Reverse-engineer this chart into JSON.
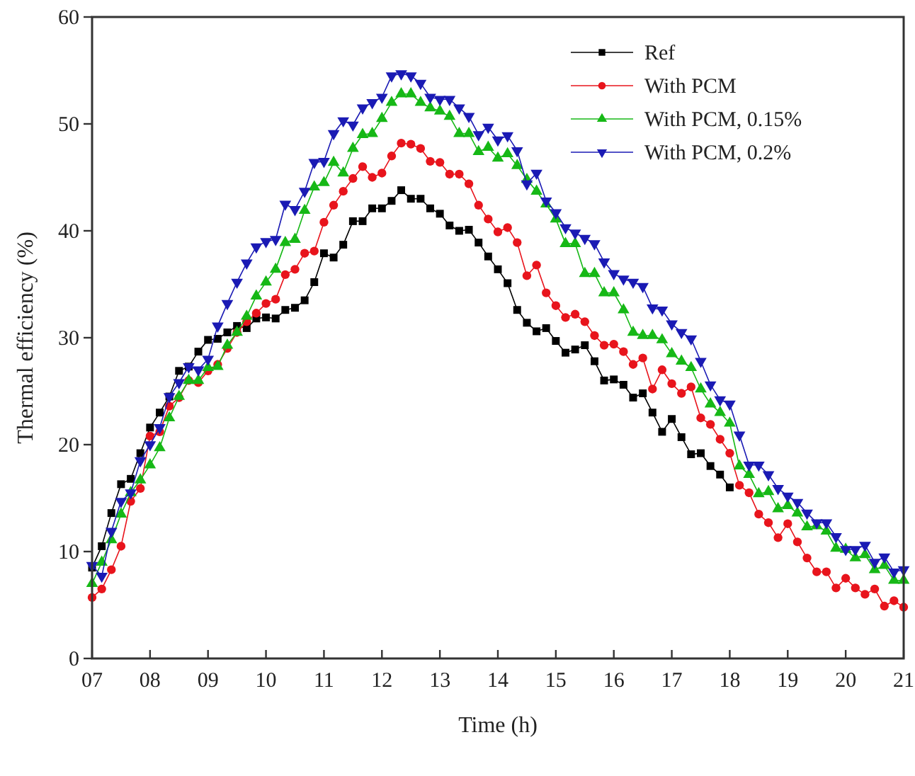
{
  "chart_data": {
    "type": "line",
    "xlabel": "Time (h)",
    "ylabel": "Thermal efficiency (%)",
    "x": [
      7,
      7.167,
      7.333,
      7.5,
      7.667,
      7.833,
      8,
      8.167,
      8.333,
      8.5,
      8.667,
      8.833,
      9,
      9.167,
      9.333,
      9.5,
      9.667,
      9.833,
      10,
      10.167,
      10.333,
      10.5,
      10.667,
      10.833,
      11,
      11.167,
      11.333,
      11.5,
      11.667,
      11.833,
      12,
      12.167,
      12.333,
      12.5,
      12.667,
      12.833,
      13,
      13.167,
      13.333,
      13.5,
      13.667,
      13.833,
      14,
      14.167,
      14.333,
      14.5,
      14.667,
      14.833,
      15,
      15.167,
      15.333,
      15.5,
      15.667,
      15.833,
      16,
      16.167,
      16.333,
      16.5,
      16.667,
      16.833,
      17,
      17.167,
      17.333,
      17.5,
      17.667,
      17.833,
      18,
      18.167,
      18.333,
      18.5,
      18.667,
      18.833,
      19,
      19.167,
      19.333,
      19.5,
      19.667,
      19.833,
      20,
      20.167,
      20.333,
      20.5,
      20.667,
      20.833,
      21
    ],
    "xlim": [
      7,
      21
    ],
    "xticks": [
      {
        "value": 7,
        "label": "07"
      },
      {
        "value": 8,
        "label": "08"
      },
      {
        "value": 9,
        "label": "09"
      },
      10,
      11,
      12,
      13,
      14,
      15,
      16,
      17,
      18,
      19,
      20,
      21
    ],
    "ylim": [
      0,
      60
    ],
    "yticks": [
      0,
      10,
      20,
      30,
      40,
      50,
      60
    ],
    "grid": false,
    "legend": "top right",
    "series": [
      {
        "name": "Ref",
        "color": "#000000",
        "marker": "square",
        "values": [
          8.5,
          10.5,
          13.6,
          16.3,
          16.8,
          19.2,
          21.6,
          23,
          24.5,
          26.9,
          27.3,
          28.7,
          29.8,
          29.9,
          30.5,
          31.1,
          30.9,
          31.8,
          31.9,
          31.8,
          32.6,
          32.8,
          33.5,
          35.2,
          37.9,
          37.5,
          38.7,
          40.9,
          40.9,
          42.1,
          42.1,
          42.8,
          43.8,
          43,
          43,
          42.1,
          41.6,
          40.5,
          40,
          40.1,
          38.9,
          37.6,
          36.4,
          35.1,
          32.6,
          31.4,
          30.6,
          30.9,
          29.7,
          28.6,
          28.9,
          29.3,
          27.8,
          26,
          26.1,
          25.6,
          24.4,
          24.8,
          23,
          21.2,
          22.4,
          20.7,
          19.1,
          19.2,
          18,
          17.2,
          16,
          null,
          null,
          null,
          null,
          null,
          null,
          null,
          null,
          null,
          null,
          null,
          null,
          null,
          null,
          null,
          null,
          null,
          null
        ]
      },
      {
        "name": "With PCM",
        "color": "#e8141c",
        "marker": "circle",
        "values": [
          5.7,
          6.5,
          8.3,
          10.5,
          14.7,
          15.9,
          20.8,
          21.2,
          23.6,
          24.4,
          26,
          25.8,
          26.9,
          27.5,
          29,
          30.5,
          31.5,
          32.3,
          33.2,
          33.6,
          35.9,
          36.4,
          37.9,
          38.1,
          40.8,
          42.4,
          43.7,
          44.9,
          46,
          45,
          45.4,
          47,
          48.2,
          48.1,
          47.7,
          46.5,
          46.4,
          45.3,
          45.3,
          44.4,
          42.4,
          41.1,
          39.9,
          40.3,
          38.9,
          35.8,
          36.8,
          34.2,
          33,
          31.9,
          32.2,
          31.5,
          30.2,
          29.3,
          29.4,
          28.7,
          27.5,
          28.1,
          25.2,
          27,
          25.7,
          24.8,
          25.4,
          22.5,
          21.9,
          20.5,
          19.2,
          16.2,
          15.5,
          13.5,
          12.7,
          11.3,
          12.6,
          10.9,
          9.4,
          8.1,
          8.1,
          6.6,
          7.5,
          6.6,
          6,
          6.5,
          4.9,
          5.4,
          4.8
        ]
      },
      {
        "name": "With PCM, 0.15%",
        "color": "#16b816",
        "marker": "triangle",
        "values": [
          7,
          9,
          11.1,
          13.5,
          15.5,
          16.7,
          18.1,
          19.7,
          22.5,
          24.5,
          26,
          26,
          27.2,
          27.3,
          29.3,
          30.5,
          32,
          33.9,
          35.2,
          36.4,
          38.9,
          39.2,
          41.9,
          44.1,
          44.5,
          46.4,
          45.4,
          47.7,
          49,
          49.1,
          50.5,
          52,
          52.8,
          52.8,
          52,
          51.5,
          51.2,
          50.7,
          49.1,
          49.1,
          47.4,
          47.8,
          46.8,
          47.2,
          46.1,
          44.8,
          43.7,
          42.5,
          41.1,
          38.8,
          38.8,
          36,
          36,
          34.2,
          34.2,
          32.6,
          30.5,
          30.2,
          30.2,
          29.8,
          28.5,
          27.8,
          27.2,
          25.2,
          23.8,
          23,
          22,
          18,
          17.2,
          15.4,
          15.6,
          14,
          14.3,
          13.6,
          12.3,
          12.4,
          11.9,
          10.3,
          10.2,
          9.4,
          9.7,
          8.3,
          8.7,
          7.3,
          7.3
        ]
      },
      {
        "name": "With PCM, 0.2%",
        "color": "#1a1ab4",
        "marker": "triangle-down",
        "values": [
          8.7,
          7.7,
          11.9,
          14.7,
          15.5,
          18.5,
          20,
          21.6,
          24.5,
          25.8,
          27.3,
          27,
          28,
          31.1,
          33.2,
          35.2,
          37,
          38.5,
          39,
          39.2,
          42.5,
          42,
          43.7,
          46.4,
          46.5,
          49.1,
          50.3,
          49.9,
          51.5,
          52,
          52.5,
          54.5,
          54.7,
          54.5,
          53.8,
          52.5,
          52.3,
          52.3,
          51.5,
          50.7,
          49,
          49.7,
          48.5,
          48.9,
          47.5,
          44.4,
          45.4,
          42.8,
          41.7,
          40.3,
          39.8,
          39.3,
          38.8,
          37.1,
          36,
          35.5,
          35.2,
          34.8,
          32.8,
          32.6,
          31.3,
          30.5,
          29.9,
          27.8,
          25.6,
          24.2,
          23.8,
          20.9,
          18.1,
          18.1,
          17.2,
          15.9,
          15.2,
          14.6,
          13.6,
          12.7,
          12.7,
          11.4,
          10.2,
          10.2,
          10.6,
          9,
          9.5,
          8.1,
          8.3
        ]
      }
    ]
  }
}
